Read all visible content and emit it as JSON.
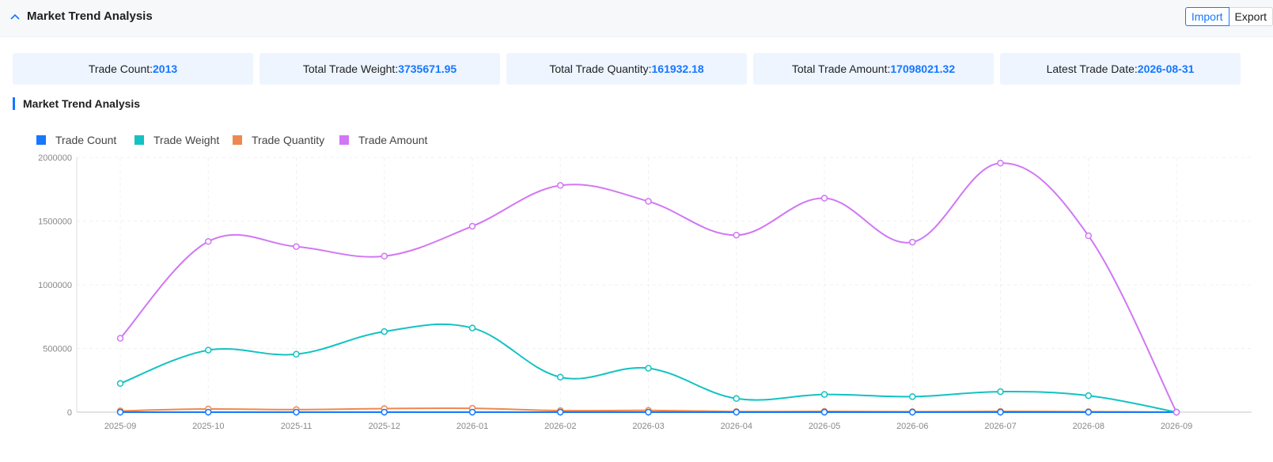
{
  "header": {
    "title": "Market Trend Analysis",
    "import_label": "Import",
    "export_label": "Export"
  },
  "stats": [
    {
      "label": "Trade Count:",
      "value": "2013"
    },
    {
      "label": "Total Trade Weight:",
      "value": "3735671.95"
    },
    {
      "label": "Total Trade Quantity:",
      "value": "161932.18"
    },
    {
      "label": "Total Trade Amount:",
      "value": "17098021.32"
    },
    {
      "label": "Latest Trade Date:",
      "value": "2026-08-31"
    }
  ],
  "section": {
    "title": "Market Trend Analysis"
  },
  "colors": {
    "accent": "#1677ff",
    "trade_count": "#1677ff",
    "trade_weight": "#13c2c2",
    "trade_quantity": "#ee8850",
    "trade_amount": "#d177f5"
  },
  "chart_data": {
    "type": "line",
    "x": [
      "2025-09",
      "2025-10",
      "2025-11",
      "2025-12",
      "2026-01",
      "2026-02",
      "2026-03",
      "2026-04",
      "2026-05",
      "2026-06",
      "2026-07",
      "2026-08",
      "2026-09"
    ],
    "ylim": [
      0,
      2000000
    ],
    "yticks": [
      0,
      500000,
      1000000,
      1500000,
      2000000
    ],
    "legend_position": "top-left",
    "grid": true,
    "series": [
      {
        "name": "Trade Count",
        "color": "#1677ff",
        "values": [
          20,
          200,
          200,
          220,
          230,
          190,
          200,
          160,
          170,
          170,
          180,
          120,
          0
        ]
      },
      {
        "name": "Trade Weight",
        "color": "#13c2c2",
        "values": [
          225000,
          487000,
          455000,
          633000,
          661000,
          275000,
          345000,
          107000,
          139000,
          122000,
          161000,
          130000,
          0
        ]
      },
      {
        "name": "Trade Quantity",
        "color": "#ee8850",
        "values": [
          10000,
          25000,
          20000,
          28000,
          30000,
          12000,
          14000,
          5000,
          6000,
          4000,
          6000,
          4000,
          0
        ]
      },
      {
        "name": "Trade Amount",
        "color": "#d177f5",
        "values": [
          580000,
          1340000,
          1300000,
          1225000,
          1460000,
          1780000,
          1655000,
          1390000,
          1680000,
          1335000,
          1955000,
          1385000,
          0
        ]
      }
    ]
  }
}
